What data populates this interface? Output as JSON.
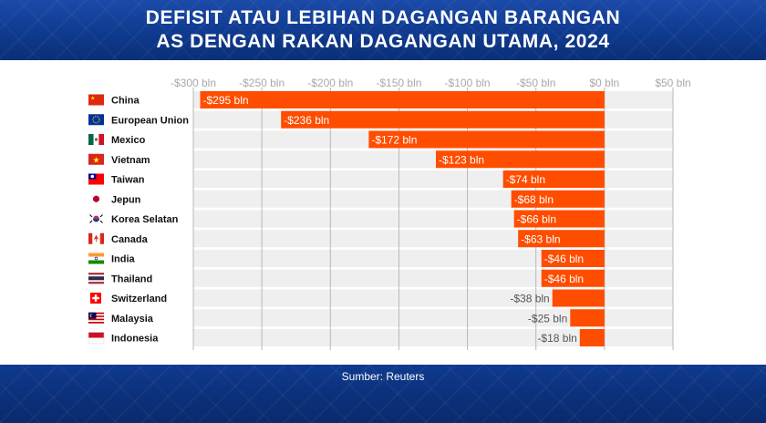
{
  "title": {
    "line1": "DEFISIT ATAU LEBIHAN DAGANGAN BARANGAN",
    "line2": "AS DENGAN RAKAN DAGANGAN UTAMA, 2024"
  },
  "source": "Sumber: Reuters",
  "colors": {
    "bar": "#ff4d00",
    "row_band": "#efefef",
    "grid": "#b8b8b8",
    "header_bg": "#0f3a8e"
  },
  "chart_data": {
    "type": "bar",
    "orientation": "horizontal",
    "units": "billion USD",
    "xlim": [
      -300,
      50
    ],
    "x_ticks": [
      -300,
      -250,
      -200,
      -150,
      -100,
      -50,
      0,
      50
    ],
    "x_tick_labels": [
      "-$300 bln",
      "-$250 bln",
      "-$200 bln",
      "-$150 bln",
      "-$100 bln",
      "-$50 bln",
      "$0 bln",
      "$50 bln"
    ],
    "grid": true,
    "categories": [
      "China",
      "European Union",
      "Mexico",
      "Vietnam",
      "Taiwan",
      "Jepun",
      "Korea Selatan",
      "Canada",
      "India",
      "Thailand",
      "Switzerland",
      "Malaysia",
      "Indonesia"
    ],
    "values": [
      -295,
      -236,
      -172,
      -123,
      -74,
      -68,
      -66,
      -63,
      -46,
      -46,
      -38,
      -25,
      -18
    ],
    "value_labels": [
      "-$295 bln",
      "-$236 bln",
      "-$172 bln",
      "-$123 bln",
      "-$74 bln",
      "-$68 bln",
      "-$66 bln",
      "-$63 bln",
      "-$46 bln",
      "-$46 bln",
      "-$38 bln",
      "-$25 bln",
      "-$18 bln"
    ],
    "flag_icons": [
      "china-flag-icon",
      "eu-flag-icon",
      "mexico-flag-icon",
      "vietnam-flag-icon",
      "taiwan-flag-icon",
      "japan-flag-icon",
      "south-korea-flag-icon",
      "canada-flag-icon",
      "india-flag-icon",
      "thailand-flag-icon",
      "switzerland-flag-icon",
      "malaysia-flag-icon",
      "indonesia-flag-icon"
    ]
  }
}
